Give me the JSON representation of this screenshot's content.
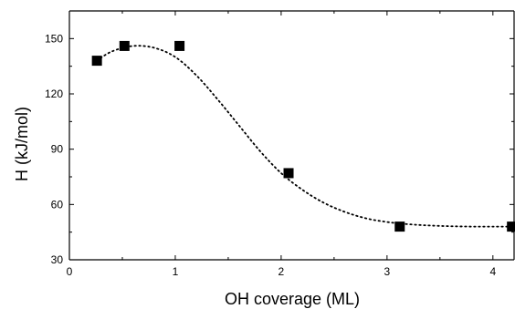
{
  "chart_data": {
    "type": "scatter",
    "title": "",
    "xlabel": "OH coverage (ML)",
    "ylabel": "H (kJ/mol)",
    "xlim": [
      0,
      4.2
    ],
    "ylim": [
      30,
      165
    ],
    "x_ticks": [
      0,
      1,
      2,
      3,
      4
    ],
    "y_ticks": [
      30,
      60,
      90,
      120,
      150
    ],
    "grid": false,
    "legend": "none",
    "series": [
      {
        "marker": "filled-square",
        "color": "#000000",
        "x": [
          0.26,
          0.52,
          1.04,
          2.07,
          3.12,
          4.18
        ],
        "y": [
          138,
          146,
          146,
          77,
          48,
          48
        ]
      }
    ],
    "fit_curve": {
      "style": "dotted",
      "color": "#000000",
      "x": [
        0.26,
        0.4,
        0.6,
        0.8,
        1.0,
        1.2,
        1.4,
        1.6,
        1.8,
        2.0,
        2.2,
        2.4,
        2.6,
        2.8,
        3.0,
        3.2,
        3.4,
        3.6,
        3.8,
        4.0,
        4.2
      ],
      "y": [
        138,
        143,
        146,
        145,
        140,
        130,
        117,
        103,
        89,
        77,
        68,
        61,
        56,
        52.5,
        50.5,
        49.3,
        48.6,
        48.2,
        48.0,
        48.0,
        48.0
      ]
    }
  }
}
